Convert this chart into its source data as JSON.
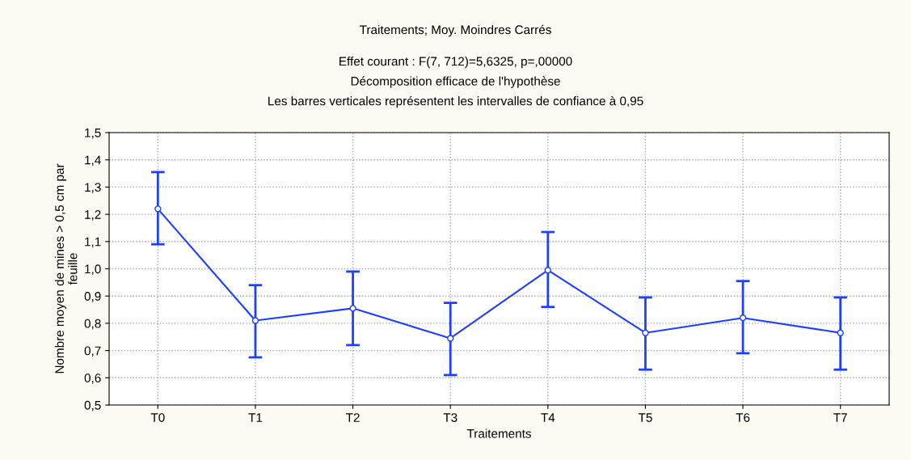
{
  "chart_data": {
    "type": "line",
    "title": "Traitements; Moy. Moindres Carrés",
    "subtitle": "Effet courant : F(7, 712)=5,6325, p=,00000\nDécomposition efficace de l'hypothèse\nLes barres verticales représentent les intervalles de confiance à 0,95",
    "xlabel": "Traitements",
    "ylabel": "Nombre moyen de mines > 0,5 cm par\nfeuille",
    "categories": [
      "T0",
      "T1",
      "T2",
      "T3",
      "T4",
      "T5",
      "T6",
      "T7"
    ],
    "series": [
      {
        "color": "#1f3fff",
        "values": [
          1.22,
          0.81,
          0.855,
          0.745,
          0.995,
          0.765,
          0.82,
          0.765
        ],
        "errors": [
          [
            1.09,
            1.355
          ],
          [
            0.675,
            0.94
          ],
          [
            0.72,
            0.99
          ],
          [
            0.61,
            0.875
          ],
          [
            0.86,
            1.135
          ],
          [
            0.63,
            0.895
          ],
          [
            0.69,
            0.955
          ],
          [
            0.63,
            0.895
          ]
        ]
      }
    ],
    "ylim": [
      0.5,
      1.5
    ],
    "yticks": [
      {
        "value": 0.5,
        "label": "0,5"
      },
      {
        "value": 0.6,
        "label": "0,6"
      },
      {
        "value": 0.7,
        "label": "0,7"
      },
      {
        "value": 0.8,
        "label": "0,8"
      },
      {
        "value": 0.9,
        "label": "0,9"
      },
      {
        "value": 1.0,
        "label": "1,0"
      },
      {
        "value": 1.1,
        "label": "1,1"
      },
      {
        "value": 1.2,
        "label": "1,2"
      },
      {
        "value": 1.3,
        "label": "1,3"
      },
      {
        "value": 1.4,
        "label": "1,4"
      },
      {
        "value": 1.5,
        "label": "1,5"
      }
    ],
    "grid": true,
    "marker": "circle",
    "line_style": "solid",
    "legend": false
  }
}
